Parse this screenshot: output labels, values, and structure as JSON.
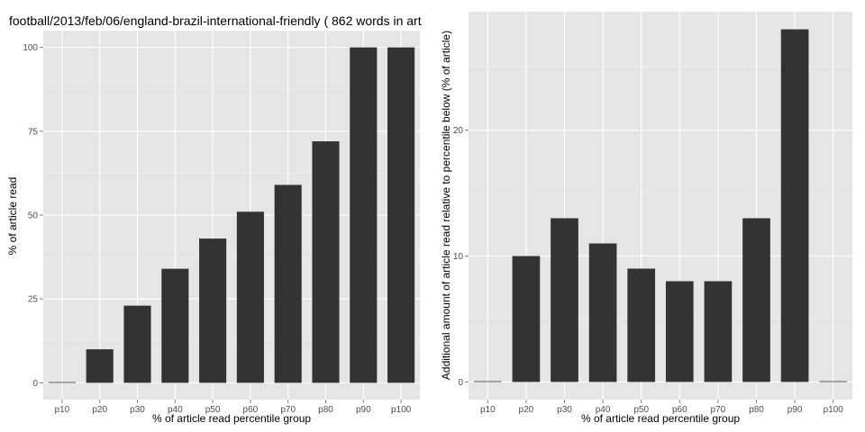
{
  "page_title": "football/2013/feb/06/england-brazil-international-friendly ( 862 words in art",
  "chart_data": [
    {
      "type": "bar",
      "categories": [
        "p10",
        "p20",
        "p30",
        "p40",
        "p50",
        "p60",
        "p70",
        "p80",
        "p90",
        "p100"
      ],
      "values": [
        0,
        10,
        23,
        34,
        43,
        51,
        59,
        72,
        100,
        100
      ],
      "title": "football/2013/feb/06/england-brazil-international-friendly ( 862 words in art",
      "xlabel": "% of article read percentile group",
      "ylabel": "% of article read",
      "ylim": [
        -5,
        105
      ],
      "yticks": [
        0,
        25,
        50,
        75,
        100
      ],
      "grid": true,
      "colors": {
        "panel": "#e5e5e5",
        "grid": "#ffffff",
        "bar": "#333333"
      }
    },
    {
      "type": "bar",
      "categories": [
        "p10",
        "p20",
        "p30",
        "p40",
        "p50",
        "p60",
        "p70",
        "p80",
        "p90",
        "p100"
      ],
      "values": [
        0,
        10,
        13,
        11,
        9,
        8,
        8,
        13,
        28,
        0
      ],
      "title": "",
      "xlabel": "% of article read percentile group",
      "ylabel": "Additional amount of article read relative to percentile below (% of article)",
      "ylim": [
        -1.4,
        29.4
      ],
      "yticks": [
        0,
        10,
        20
      ],
      "grid": true,
      "colors": {
        "panel": "#e5e5e5",
        "grid": "#ffffff",
        "bar": "#333333"
      }
    }
  ]
}
